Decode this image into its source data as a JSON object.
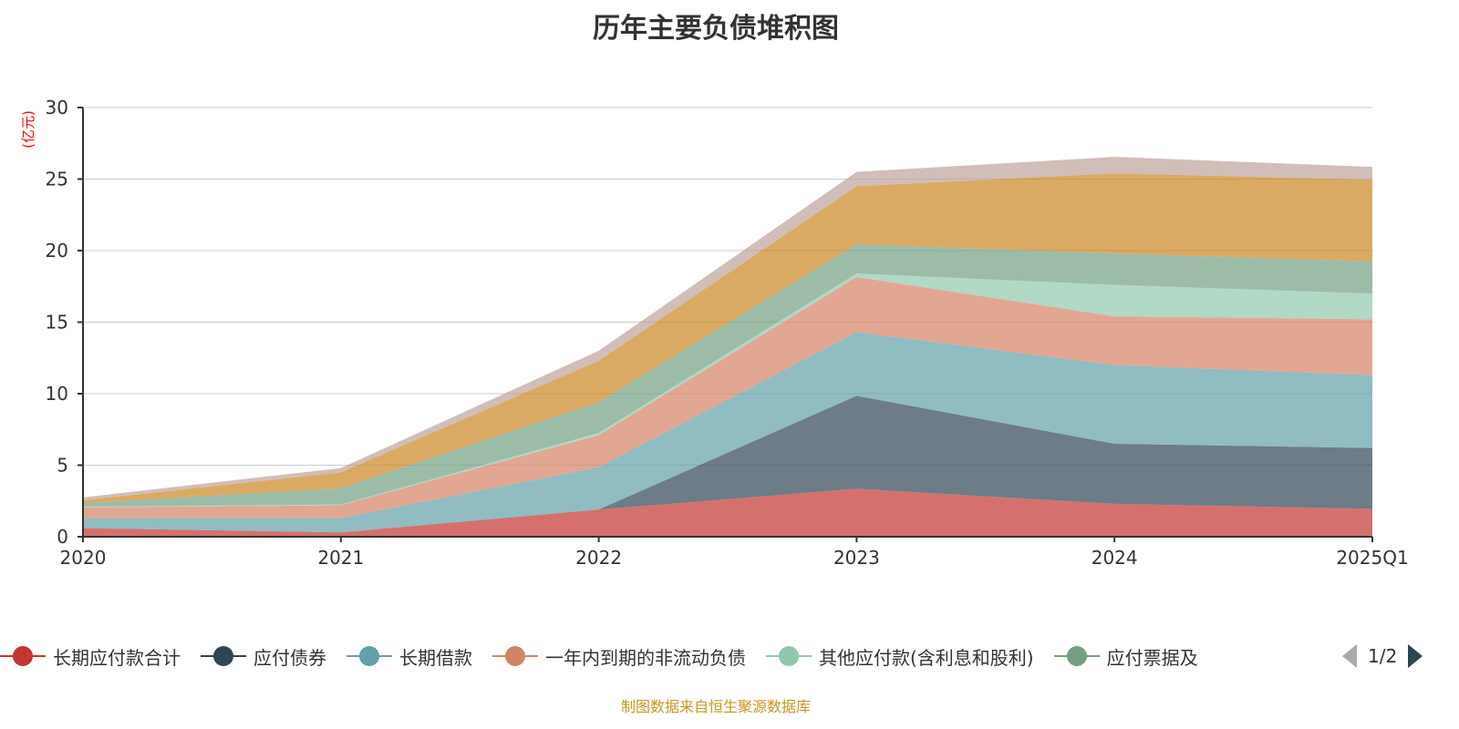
{
  "chart_data": {
    "type": "area",
    "stacked": true,
    "title": "历年主要负债堆积图",
    "ylabel": "(亿元)",
    "xlabel": "",
    "ylim": [
      0,
      30
    ],
    "yticks": [
      "0",
      "5",
      "10",
      "15",
      "20",
      "25",
      "30"
    ],
    "categories": [
      "2020",
      "2021",
      "2022",
      "2023",
      "2024",
      "2025Q1"
    ],
    "grid": true,
    "legend_position": "bottom",
    "series": [
      {
        "name": "长期应付款合计",
        "color": "#c23531",
        "values": [
          0.6,
          0.3,
          1.9,
          3.35,
          2.3,
          1.95
        ]
      },
      {
        "name": "应付债券",
        "color": "#2f4554",
        "values": [
          0,
          0,
          0,
          6.5,
          4.2,
          4.25
        ]
      },
      {
        "name": "长期借款",
        "color": "#61a0a8",
        "values": [
          0.7,
          1.0,
          2.95,
          4.45,
          5.5,
          5.1
        ]
      },
      {
        "name": "一年内到期的非流动负债",
        "color": "#d48265",
        "values": [
          0.75,
          0.9,
          2.25,
          3.85,
          3.4,
          3.9
        ]
      },
      {
        "name": "其他应付款(含利息和股利)",
        "color": "#91c7ae",
        "values": [
          0.05,
          0.05,
          0.15,
          0.25,
          2.2,
          1.8
        ]
      },
      {
        "name": "应付票据及应付账款",
        "color": "#749f83",
        "values": [
          0.25,
          1.15,
          2.15,
          2.05,
          2.2,
          2.25
        ]
      },
      {
        "name": "",
        "color": "#ca8622",
        "values": [
          0.2,
          1.1,
          2.9,
          4.05,
          5.6,
          5.7
        ]
      },
      {
        "name": "",
        "color": "#bda29a",
        "values": [
          0.2,
          0.3,
          0.7,
          1.0,
          1.15,
          0.9
        ]
      }
    ]
  },
  "legend": {
    "visible_items": [
      "长期应付款合计",
      "应付债券",
      "长期借款",
      "一年内到期的非流动负债",
      "其他应付款(含利息和股利)",
      "应付票据及"
    ],
    "page": "1/2"
  },
  "footer": "制图数据来自恒生聚源数据库"
}
